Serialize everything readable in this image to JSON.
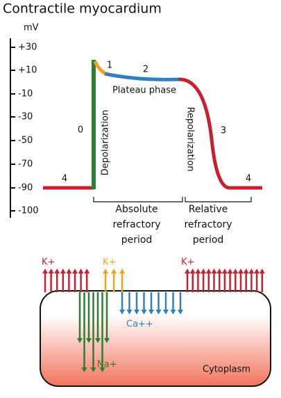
{
  "title": "Contractile myocardium",
  "axis": {
    "unit": "mV",
    "ticks": [
      "+30",
      "+10",
      "-10",
      "-30",
      "-50",
      "-70",
      "-90",
      "-100"
    ]
  },
  "phases": [
    "4",
    "0",
    "1",
    "2",
    "3",
    "4"
  ],
  "annotations": {
    "plateau": "Plateau phase",
    "depolarization": "Depolarization",
    "repolarization": "Repolarization"
  },
  "periods": [
    {
      "lines": [
        "Absolute",
        "refractory",
        "period"
      ]
    },
    {
      "lines": [
        "Relative",
        "refractory",
        "period"
      ]
    }
  ],
  "ions": {
    "k_left": "K+",
    "k_mid": "K+",
    "k_right": "K+",
    "ca": "Ca++",
    "na": "Na+"
  },
  "cell": {
    "label": "Cytoplasm"
  }
}
